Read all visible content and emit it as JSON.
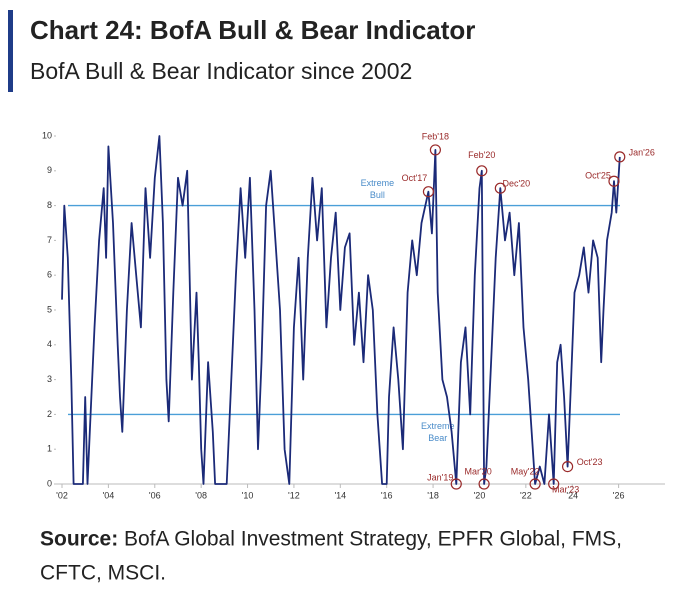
{
  "chart_data": {
    "type": "line",
    "title": "Chart 24: BofA Bull & Bear Indicator",
    "subtitle": "BofA Bull & Bear Indicator since 2002",
    "source_label": "Source:",
    "source_lines": [
      "BofA Global Investment Strategy, EPFR Global, FMS,",
      "CFTC, MSCI."
    ],
    "xlim": [
      2002,
      2028
    ],
    "ylim": [
      0,
      10
    ],
    "xticks": [
      {
        "value": 2002,
        "label": "'02"
      },
      {
        "value": 2004,
        "label": "'04"
      },
      {
        "value": 2006,
        "label": "'06"
      },
      {
        "value": 2008,
        "label": "'08"
      },
      {
        "value": 2010,
        "label": "'10"
      },
      {
        "value": 2012,
        "label": "'12"
      },
      {
        "value": 2014,
        "label": "'14"
      },
      {
        "value": 2016,
        "label": "'16"
      },
      {
        "value": 2018,
        "label": "'18"
      },
      {
        "value": 2020,
        "label": "'20"
      },
      {
        "value": 2022,
        "label": "'22"
      },
      {
        "value": 2024,
        "label": "'24"
      },
      {
        "value": 2026,
        "label": "'26"
      }
    ],
    "yticks": [
      0,
      1,
      2,
      3,
      4,
      5,
      6,
      7,
      8,
      9,
      10
    ],
    "reference_lines": [
      {
        "value": 8,
        "label": [
          "Extreme",
          "Bull"
        ],
        "color": "#4a9fd8"
      },
      {
        "value": 2,
        "label": [
          "Extreme",
          "Bear"
        ],
        "color": "#4a9fd8"
      }
    ],
    "series": [
      {
        "color": "#1b2a78",
        "x": [
          2002.0,
          2002.1,
          2002.25,
          2002.4,
          2002.5,
          2002.75,
          2002.9,
          2003.0,
          2003.1,
          2003.2,
          2003.4,
          2003.6,
          2003.8,
          2003.9,
          2004.0,
          2004.2,
          2004.4,
          2004.5,
          2004.6,
          2004.8,
          2005.0,
          2005.2,
          2005.4,
          2005.6,
          2005.8,
          2006.0,
          2006.2,
          2006.35,
          2006.5,
          2006.6,
          2006.8,
          2007.0,
          2007.2,
          2007.4,
          2007.5,
          2007.6,
          2007.8,
          2007.9,
          2008.0,
          2008.1,
          2008.3,
          2008.5,
          2008.6,
          2008.9,
          2009.1,
          2009.3,
          2009.5,
          2009.7,
          2009.9,
          2010.1,
          2010.3,
          2010.45,
          2010.6,
          2010.8,
          2011.0,
          2011.2,
          2011.4,
          2011.6,
          2011.8,
          2012.0,
          2012.2,
          2012.4,
          2012.6,
          2012.8,
          2013.0,
          2013.2,
          2013.4,
          2013.6,
          2013.8,
          2014.0,
          2014.2,
          2014.4,
          2014.6,
          2014.8,
          2015.0,
          2015.2,
          2015.4,
          2015.6,
          2015.8,
          2016.0,
          2016.1,
          2016.3,
          2016.5,
          2016.7,
          2016.9,
          2017.1,
          2017.3,
          2017.5,
          2017.8,
          2017.95,
          2018.1,
          2018.2,
          2018.4,
          2018.6,
          2018.8,
          2019.0,
          2019.2,
          2019.4,
          2019.6,
          2019.8,
          2020.0,
          2020.1,
          2020.2,
          2020.3,
          2020.5,
          2020.7,
          2020.9,
          2021.1,
          2021.3,
          2021.5,
          2021.7,
          2021.9,
          2022.1,
          2022.3,
          2022.4,
          2022.6,
          2022.8,
          2023.0,
          2023.2,
          2023.35,
          2023.5,
          2023.65,
          2023.8,
          2023.95,
          2024.1,
          2024.3,
          2024.5,
          2024.7,
          2024.9,
          2025.1,
          2025.25,
          2025.35,
          2025.5,
          2025.7,
          2025.8,
          2025.9,
          2026.05
        ],
        "values": [
          5.3,
          8.0,
          6.5,
          3.0,
          0,
          0,
          0,
          2.5,
          0,
          1.5,
          4.5,
          7.0,
          8.5,
          6.5,
          9.7,
          7.5,
          4.0,
          2.5,
          1.5,
          5.0,
          7.5,
          6.0,
          4.5,
          8.5,
          6.5,
          8.8,
          10.0,
          7.5,
          3.0,
          1.8,
          5.5,
          8.8,
          8.0,
          9.0,
          6.0,
          3.0,
          5.5,
          3.5,
          1.0,
          0,
          3.5,
          1.5,
          0,
          0,
          0,
          3.0,
          6.0,
          8.5,
          6.5,
          8.8,
          5.0,
          1.0,
          3.5,
          8.0,
          9.0,
          7.0,
          5.0,
          1.0,
          0,
          4.5,
          6.5,
          3.0,
          6.5,
          8.8,
          7.0,
          8.5,
          4.5,
          6.5,
          7.8,
          5.0,
          6.8,
          7.2,
          4.0,
          5.5,
          3.5,
          6.0,
          5.0,
          2.0,
          0,
          0,
          2.5,
          4.5,
          3.0,
          1.0,
          5.5,
          7.0,
          6.0,
          7.5,
          8.4,
          7.2,
          9.6,
          5.5,
          3.0,
          2.5,
          1.5,
          0,
          3.5,
          4.5,
          2.0,
          6.0,
          8.5,
          9.0,
          0,
          0.5,
          3.5,
          6.5,
          8.5,
          7.0,
          7.8,
          6.0,
          7.5,
          4.5,
          3.0,
          1.0,
          0,
          0.5,
          0,
          2.0,
          0,
          3.5,
          4.0,
          2.5,
          0.5,
          3.0,
          5.5,
          6.0,
          6.8,
          5.5,
          7.0,
          6.5,
          3.5,
          5.0,
          7.0,
          7.8,
          8.7,
          7.8,
          9.4
        ]
      }
    ],
    "annotations": [
      {
        "text": "Oct'17",
        "x": 2017.8,
        "y": 8.4
      },
      {
        "text": "Feb'18",
        "x": 2018.1,
        "y": 9.6
      },
      {
        "text": "Feb'20",
        "x": 2020.1,
        "y": 9.0
      },
      {
        "text": "Dec'20",
        "x": 2020.9,
        "y": 8.5
      },
      {
        "text": "Jan'19",
        "x": 2019.0,
        "y": 0
      },
      {
        "text": "Mar'20",
        "x": 2020.2,
        "y": 0
      },
      {
        "text": "May'22",
        "x": 2022.4,
        "y": 0
      },
      {
        "text": "Mar'23",
        "x": 2023.2,
        "y": 0
      },
      {
        "text": "Oct'23",
        "x": 2023.8,
        "y": 0.5
      },
      {
        "text": "Oct'25",
        "x": 2025.8,
        "y": 8.7
      },
      {
        "text": "Jan'26",
        "x": 2026.05,
        "y": 9.4
      }
    ]
  }
}
